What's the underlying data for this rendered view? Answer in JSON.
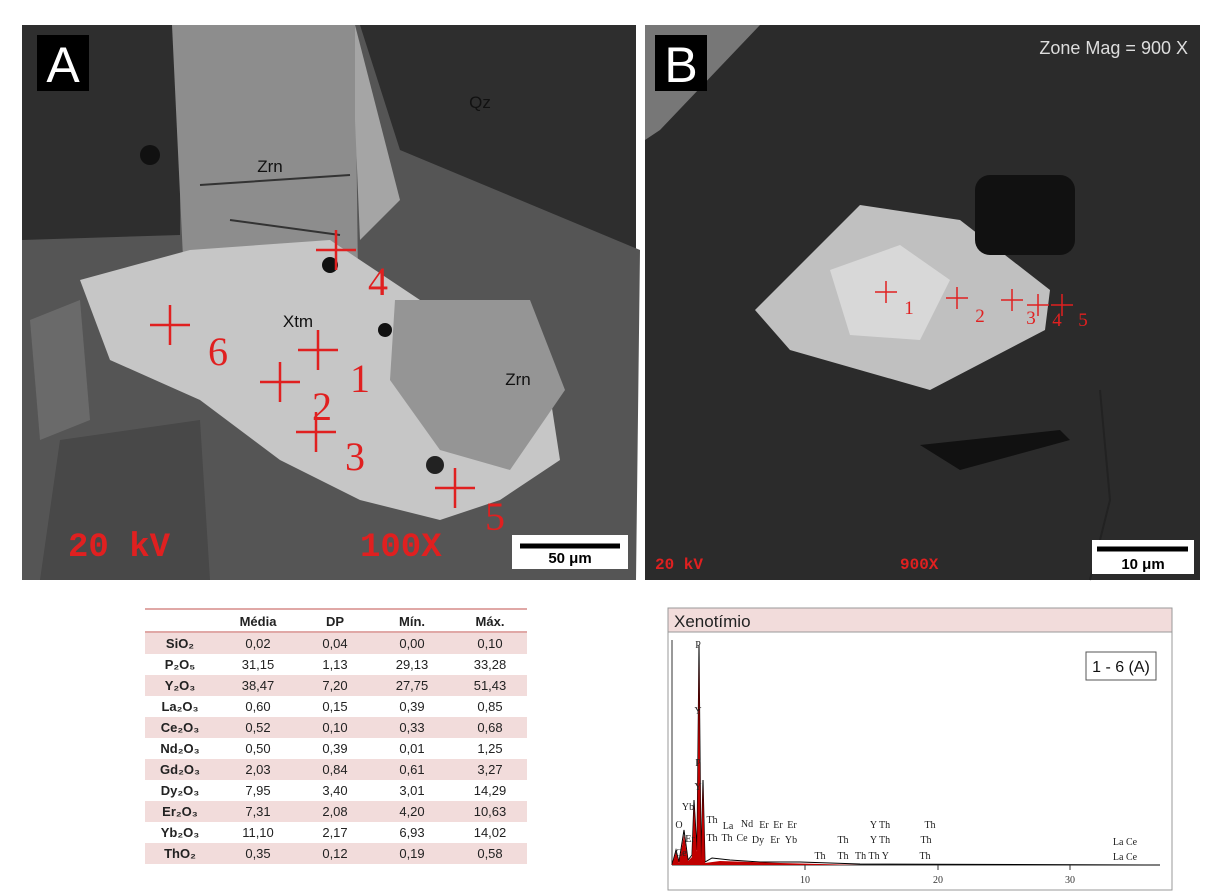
{
  "panel_a": {
    "letter": "A",
    "minerals": [
      "Qz",
      "Zrn",
      "Xtm",
      "Zrn"
    ],
    "points": [
      "1",
      "2",
      "3",
      "4",
      "5",
      "6"
    ],
    "voltage": "20 kV",
    "magnification": "100X",
    "scale": "50 μm"
  },
  "panel_b": {
    "letter": "B",
    "zone_mag": "Zone Mag = 900 X",
    "points": [
      "1",
      "2",
      "3",
      "4",
      "5"
    ],
    "voltage": "20 kV",
    "magnification": "900X",
    "scale": "10 μm"
  },
  "table": {
    "header": [
      "Média",
      "DP",
      "Mín.",
      "Máx."
    ],
    "rows": [
      [
        "SiO₂",
        "0,02",
        "0,04",
        "0,00",
        "0,10"
      ],
      [
        "P₂O₅",
        "31,15",
        "1,13",
        "29,13",
        "33,28"
      ],
      [
        "Y₂O₃",
        "38,47",
        "7,20",
        "27,75",
        "51,43"
      ],
      [
        "La₂O₃",
        "0,60",
        "0,15",
        "0,39",
        "0,85"
      ],
      [
        "Ce₂O₃",
        "0,52",
        "0,10",
        "0,33",
        "0,68"
      ],
      [
        "Nd₂O₃",
        "0,50",
        "0,39",
        "0,01",
        "1,25"
      ],
      [
        "Gd₂O₃",
        "2,03",
        "0,84",
        "0,61",
        "3,27"
      ],
      [
        "Dy₂O₃",
        "7,95",
        "3,40",
        "3,01",
        "14,29"
      ],
      [
        "Er₂O₃",
        "7,31",
        "2,08",
        "4,20",
        "10,63"
      ],
      [
        "Yb₂O₃",
        "11,10",
        "2,17",
        "6,93",
        "14,02"
      ],
      [
        "ThO₂",
        "0,35",
        "0,12",
        "0,19",
        "0,58"
      ]
    ]
  },
  "spectrum": {
    "title": "Xenotímio",
    "legend": "1 - 6 (A)",
    "x_tick_labels": [
      "10",
      "20",
      "30"
    ],
    "peak_labels": [
      "P",
      "Y",
      "P",
      "Y",
      "Yb",
      "O",
      "Er",
      "Ce",
      "Th",
      "La",
      "Nd",
      "Er",
      "Er",
      "Er",
      "Th",
      "Th",
      "Ce",
      "Dy",
      "Er",
      "Yb",
      "Y Th",
      "Th",
      "Th",
      "Y Th",
      "Th",
      "Th",
      "Th",
      "Th Th Y",
      "Th",
      "La Ce",
      "La Ce"
    ]
  }
}
